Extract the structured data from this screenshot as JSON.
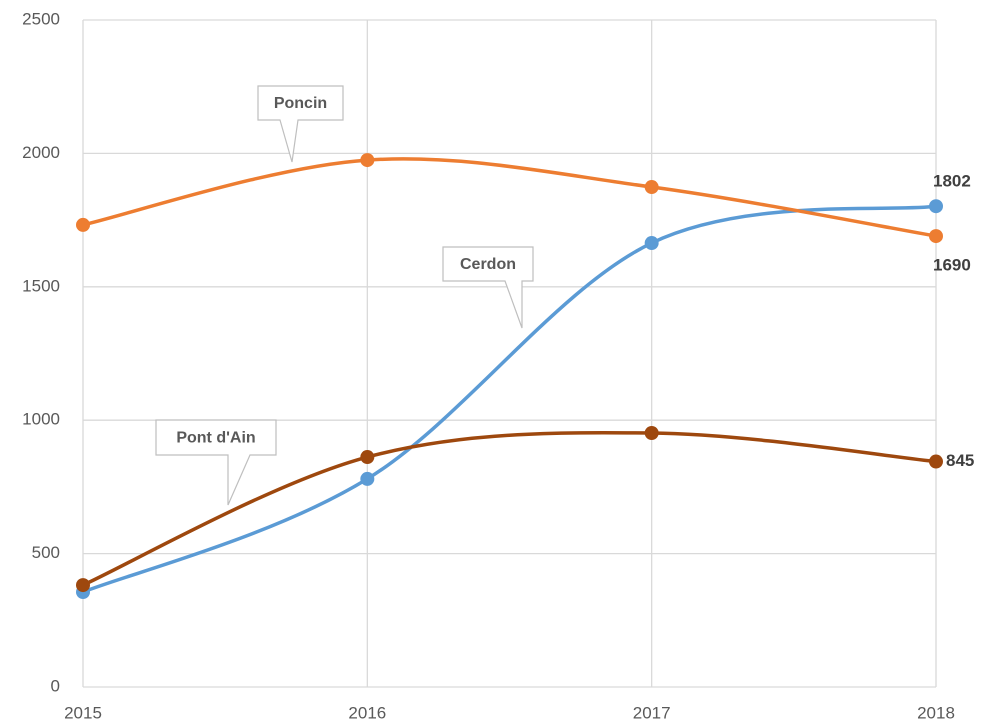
{
  "chart_data": {
    "type": "line",
    "x": [
      2015,
      2016,
      2017,
      2018
    ],
    "xlim": [
      2015,
      2018
    ],
    "xticks": [
      2015,
      2016,
      2017,
      2018
    ],
    "ylim": [
      0,
      2500
    ],
    "yticks": [
      0,
      500,
      1000,
      1500,
      2000,
      2500
    ],
    "grid": true,
    "series": [
      {
        "name": "Cerdon",
        "color": "#5b9bd5",
        "values": [
          356,
          780,
          1664,
          1802
        ]
      },
      {
        "name": "Poncin",
        "color": "#ed7d31",
        "values": [
          1732,
          1975,
          1874,
          1690
        ]
      },
      {
        "name": "Pont d'Ain",
        "color": "#9e480e",
        "values": [
          382,
          862,
          952,
          845
        ]
      }
    ]
  }
}
